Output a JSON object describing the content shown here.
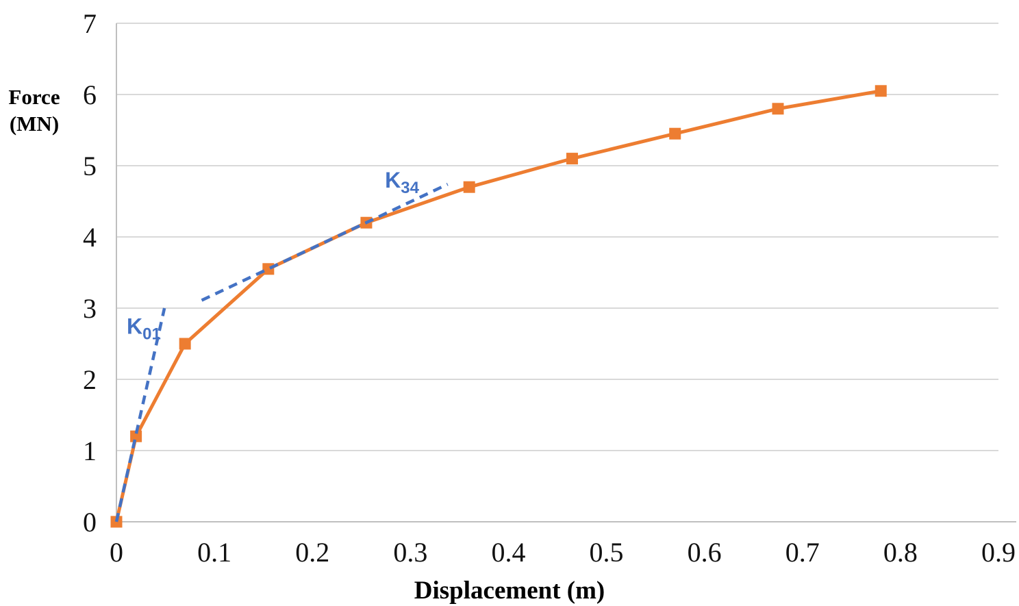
{
  "chart_data": {
    "type": "line",
    "title": "",
    "xlabel": "Displacement (m)",
    "ylabel_lines": [
      "Force",
      "(MN)"
    ],
    "xlim": [
      0,
      0.9
    ],
    "ylim": [
      0,
      7
    ],
    "x_tick_labels": [
      "0",
      "0.1",
      "0.2",
      "0.3",
      "0.4",
      "0.5",
      "0.6",
      "0.7",
      "0.8",
      "0.9"
    ],
    "x_tick_values": [
      0,
      0.1,
      0.2,
      0.3,
      0.4,
      0.5,
      0.6,
      0.7,
      0.8,
      0.9
    ],
    "y_tick_labels": [
      "0",
      "1",
      "2",
      "3",
      "4",
      "5",
      "6",
      "7"
    ],
    "y_tick_values": [
      0,
      1,
      2,
      3,
      4,
      5,
      6,
      7
    ],
    "grid": "horizontal-only",
    "legend": "none",
    "series": [
      {
        "name": "force-displacement curve",
        "color": "#ED7D31",
        "marker": "square",
        "line_style": "solid",
        "x": [
          0,
          0.02,
          0.07,
          0.155,
          0.255,
          0.36,
          0.465,
          0.57,
          0.675,
          0.78
        ],
        "y": [
          0,
          1.2,
          2.5,
          3.55,
          4.2,
          4.7,
          5.1,
          5.45,
          5.8,
          6.05
        ]
      }
    ],
    "annotation_lines": [
      {
        "name": "K01 initial stiffness line",
        "color": "#4472C4",
        "style": "dashed",
        "x1": 0,
        "y1": 0,
        "x2": 0.049,
        "y2": 3.0
      },
      {
        "name": "K34 secant stiffness line",
        "color": "#4472C4",
        "style": "dashed",
        "x1": 0.087,
        "y1": 3.11,
        "x2": 0.338,
        "y2": 4.74
      }
    ],
    "annotation_labels": [
      {
        "base": "K",
        "sub": "01",
        "x": 0.0105,
        "y": 2.64,
        "color": "#4472C4"
      },
      {
        "base": "K",
        "sub": "34",
        "x": 0.274,
        "y": 4.69,
        "color": "#4472C4"
      }
    ],
    "colors": {
      "series_orange": "#ED7D31",
      "annotation_blue": "#4472C4",
      "gridline": "#D9D9D9",
      "axis_line": "#BFBFBF",
      "text": "#000000"
    }
  }
}
